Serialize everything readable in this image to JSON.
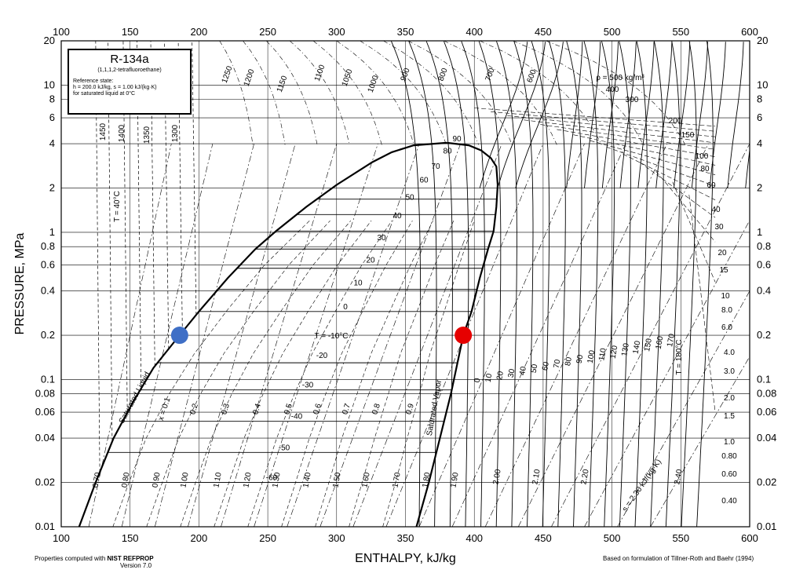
{
  "chart_data": {
    "type": "line",
    "title": "R-134a",
    "subtitle": "(1,1,1,2-tetrafluoroethane)",
    "reference_state": [
      "Reference state:",
      "h = 200.0 kJ/kg, s = 1.00 kJ/(kg·K)",
      "for saturated liquid at 0°C"
    ],
    "xlabel": "ENTHALPY, kJ/kg",
    "ylabel": "PRESSURE, MPa",
    "xlim": [
      100,
      600
    ],
    "ylim": [
      0.01,
      20
    ],
    "yscale": "log",
    "x_ticks": [
      "100",
      "150",
      "200",
      "250",
      "300",
      "350",
      "400",
      "450",
      "500",
      "550",
      "600"
    ],
    "y_ticks": [
      "0.01",
      "0.02",
      "0.04",
      "0.06",
      "0.08",
      "0.1",
      "0.2",
      "0.4",
      "0.6",
      "0.8",
      "1",
      "2",
      "4",
      "6",
      "8",
      "10",
      "20"
    ],
    "saturation_dome": {
      "liquid": {
        "name": "Saturated Liquid",
        "h": [
          113,
          125,
          138,
          152,
          167,
          186,
          200,
          221,
          241,
          256,
          278,
          300,
          326,
          340,
          356,
          380
        ],
        "p": [
          0.01,
          0.02,
          0.04,
          0.07,
          0.12,
          0.2,
          0.29,
          0.49,
          0.77,
          1.02,
          1.49,
          2.1,
          3.0,
          3.5,
          3.9,
          4.06
        ]
      },
      "vapor": {
        "name": "Saturated Vapor",
        "h": [
          358,
          367,
          375,
          383,
          392,
          398,
          404,
          410,
          414,
          416,
          417,
          416,
          412,
          405,
          396,
          380
        ],
        "p": [
          0.01,
          0.02,
          0.04,
          0.08,
          0.2,
          0.29,
          0.49,
          0.77,
          1.02,
          1.49,
          2.1,
          2.8,
          3.2,
          3.6,
          3.9,
          4.06
        ]
      }
    },
    "isotherm_labels": [
      "T = 40°C",
      "T = -10°C",
      "T = 180°C",
      "90",
      "80",
      "70",
      "60",
      "50",
      "40",
      "30",
      "20",
      "10",
      "0",
      "-20",
      "-30",
      "-40",
      "-50",
      "-60",
      "0",
      "10",
      "20",
      "30",
      "40",
      "50",
      "60",
      "70",
      "80",
      "90",
      "100",
      "110",
      "120",
      "130",
      "140",
      "150",
      "160",
      "170"
    ],
    "isochor_labels": [
      "ρ = 500 kg/m³",
      "400",
      "300",
      "200",
      "150",
      "100",
      "80",
      "60",
      "40",
      "30",
      "20",
      "15",
      "10",
      "8.0",
      "6.0",
      "4.0",
      "3.0",
      "2.0",
      "1.5",
      "1.0",
      "0.80",
      "0.60",
      "0.40",
      "1450",
      "1400",
      "1350",
      "1300",
      "1250",
      "1200",
      "1150",
      "1100",
      "1050",
      "1000",
      "900",
      "800",
      "700",
      "600"
    ],
    "entropy_labels": [
      "s = 2.30 kJ/(kg·K)",
      "0.70",
      "0.80",
      "0.90",
      "1.00",
      "1.10",
      "1.20",
      "1.30",
      "1.40",
      "1.50",
      "1.60",
      "1.70",
      "1.80",
      "1.90",
      "2.00",
      "2.10",
      "2.20",
      "2.40"
    ],
    "quality_labels": [
      "x = 0.1",
      "0.2",
      "0.3",
      "0.4",
      "0.5",
      "0.6",
      "0.7",
      "0.8",
      "0.9"
    ],
    "markers": [
      {
        "name": "",
        "h": 186,
        "p": 0.2,
        "color": "#3f6fc6"
      },
      {
        "name": "",
        "h": 392,
        "p": 0.2,
        "color": "#e60000"
      }
    ],
    "grid": true
  },
  "footer": {
    "left_line1_a": "Properties computed with",
    "left_line1_b": "NIST REFPROP",
    "left_line2": "Version 7.0",
    "right": "Based on formulation of Tillner-Roth and Baehr (1994)"
  },
  "colors": {
    "line": "#000000",
    "background": "#ffffff"
  }
}
